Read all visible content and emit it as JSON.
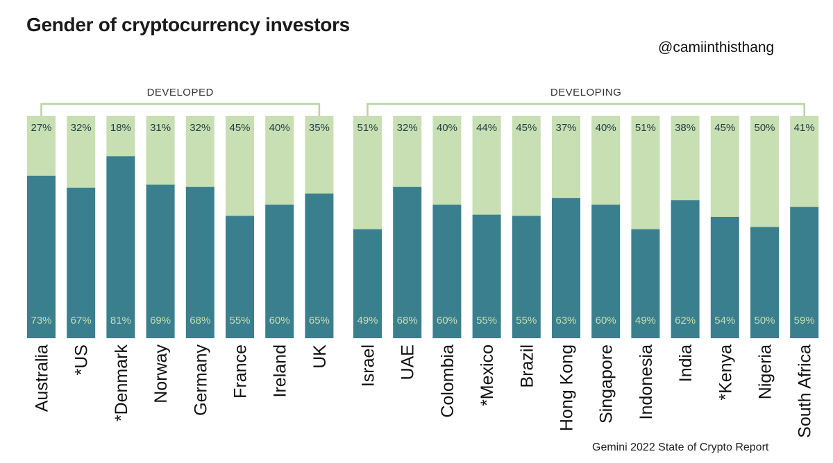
{
  "title": "Gender of cryptocurrency investors",
  "handle": "@camiinthisthang",
  "source": "Gemini 2022 State of Crypto Report",
  "colors": {
    "male": "#3a7f8e",
    "female": "#c7dfb2",
    "bracket": "#b6d4a0",
    "male_text": "#c7dfb2",
    "female_text": "#1f3d44"
  },
  "chart_data": {
    "type": "bar",
    "stacked": true,
    "orientation": "vertical",
    "ylim": [
      0,
      100
    ],
    "groups": [
      {
        "label": "DEVELOPED",
        "categories": [
          "Australia",
          "*US",
          "*Denmark",
          "Norway",
          "Germany",
          "France",
          "Ireland",
          "UK"
        ]
      },
      {
        "label": "DEVELOPING",
        "categories": [
          "Israel",
          "UAE",
          "Colombia",
          "*Mexico",
          "Brazil",
          "Hong Kong",
          "Singapore",
          "Indonesia",
          "India",
          "*Kenya",
          "Nigeria",
          "South Africa"
        ]
      }
    ],
    "categories": [
      "Australia",
      "*US",
      "*Denmark",
      "Norway",
      "Germany",
      "France",
      "Ireland",
      "UK",
      "Israel",
      "UAE",
      "Colombia",
      "*Mexico",
      "Brazil",
      "Hong Kong",
      "Singapore",
      "Indonesia",
      "India",
      "*Kenya",
      "Nigeria",
      "South Africa"
    ],
    "series": [
      {
        "values": [
          73,
          67,
          81,
          69,
          68,
          55,
          60,
          65,
          49,
          68,
          60,
          55,
          55,
          63,
          60,
          49,
          62,
          54,
          50,
          59
        ],
        "labels": [
          "73%",
          "67%",
          "81%",
          "69%",
          "68%",
          "55%",
          "60%",
          "65%",
          "49%",
          "68%",
          "60%",
          "55%",
          "55%",
          "63%",
          "60%",
          "49%",
          "62%",
          "54%",
          "50%",
          "59%"
        ]
      },
      {
        "values": [
          27,
          32,
          18,
          31,
          32,
          45,
          40,
          35,
          51,
          32,
          40,
          44,
          45,
          37,
          40,
          51,
          38,
          45,
          50,
          41
        ],
        "labels": [
          "27%",
          "32%",
          "18%",
          "31%",
          "32%",
          "45%",
          "40%",
          "35%",
          "51%",
          "32%",
          "40%",
          "44%",
          "45%",
          "37%",
          "40%",
          "51%",
          "38%",
          "45%",
          "50%",
          "41%"
        ]
      }
    ]
  }
}
